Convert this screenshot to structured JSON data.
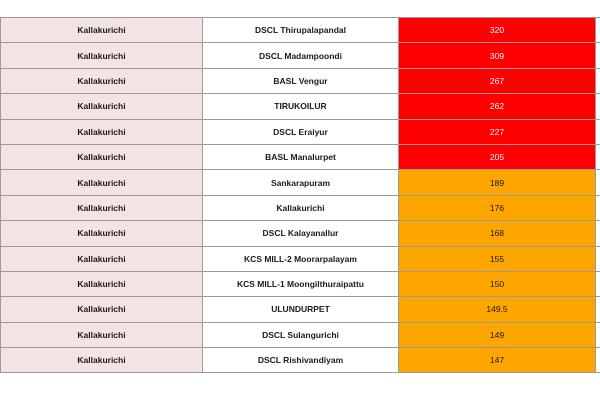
{
  "colors": {
    "red": "#ff0000",
    "orange": "#ffa500",
    "district_bg": "#f3e3e2",
    "red_text": "#ffffff",
    "orange_text": "#1a1a1a"
  },
  "rows": [
    {
      "district": "Kallakurichi",
      "station": "DSCL Thirupalapandal",
      "value": "320",
      "level": "red"
    },
    {
      "district": "Kallakurichi",
      "station": "DSCL Madampoondi",
      "value": "309",
      "level": "red"
    },
    {
      "district": "Kallakurichi",
      "station": "BASL Vengur",
      "value": "267",
      "level": "red"
    },
    {
      "district": "Kallakurichi",
      "station": "TIRUKOILUR",
      "value": "262",
      "level": "red"
    },
    {
      "district": "Kallakurichi",
      "station": "DSCL Eraiyur",
      "value": "227",
      "level": "red"
    },
    {
      "district": "Kallakurichi",
      "station": "BASL Manalurpet",
      "value": "205",
      "level": "red"
    },
    {
      "district": "Kallakurichi",
      "station": "Sankarapuram",
      "value": "189",
      "level": "orange"
    },
    {
      "district": "Kallakurichi",
      "station": "Kallakurichi",
      "value": "176",
      "level": "orange"
    },
    {
      "district": "Kallakurichi",
      "station": "DSCL Kalayanallur",
      "value": "168",
      "level": "orange"
    },
    {
      "district": "Kallakurichi",
      "station": "KCS MILL-2 Moorarpalayam",
      "value": "155",
      "level": "orange"
    },
    {
      "district": "Kallakurichi",
      "station": "KCS MILL-1 Moongilthuraipattu",
      "value": "150",
      "level": "orange"
    },
    {
      "district": "Kallakurichi",
      "station": "ULUNDURPET",
      "value": "149.5",
      "level": "orange"
    },
    {
      "district": "Kallakurichi",
      "station": "DSCL Sulangurichi",
      "value": "149",
      "level": "orange"
    },
    {
      "district": "Kallakurichi",
      "station": "DSCL Rishivandiyam",
      "value": "147",
      "level": "orange"
    }
  ]
}
